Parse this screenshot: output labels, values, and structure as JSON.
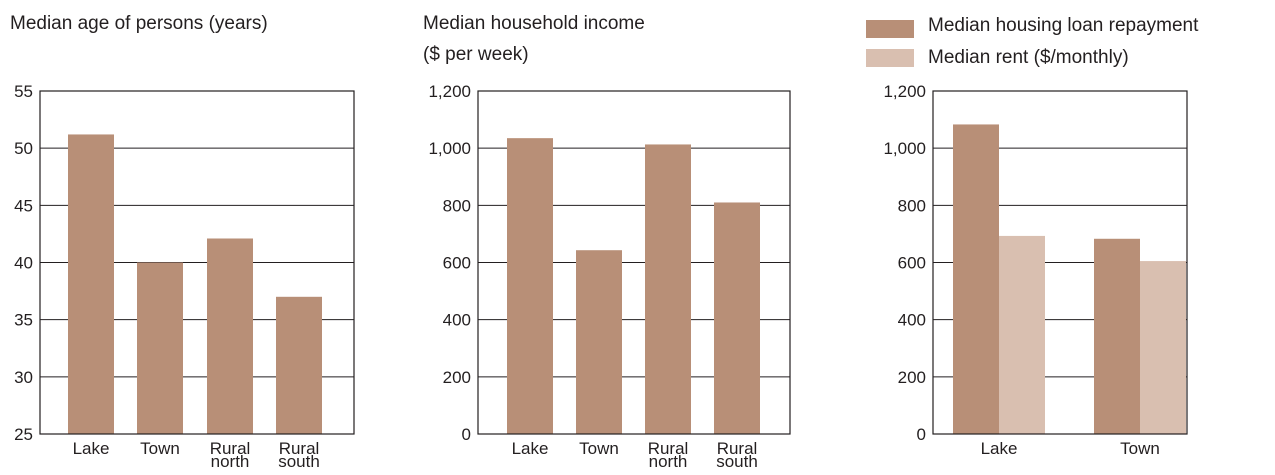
{
  "colors": {
    "primary": "#b88f77",
    "secondary": "#d9bfb0",
    "grid": "#231f20"
  },
  "chart_data": [
    {
      "type": "bar",
      "title": "Median age of persons (years)",
      "categories": [
        [
          "Lake"
        ],
        [
          "Town"
        ],
        [
          "Rural",
          "north"
        ],
        [
          "Rural",
          "south"
        ]
      ],
      "values": [
        51.2,
        40.0,
        42.1,
        37.0
      ],
      "ylim": [
        25,
        55
      ],
      "yticks": [
        25,
        30,
        35,
        40,
        45,
        50,
        55
      ],
      "ytick_labels": [
        "25",
        "30",
        "35",
        "40",
        "45",
        "50",
        "55"
      ],
      "grid": true
    },
    {
      "type": "bar",
      "title": "Median household income",
      "subtitle": "($ per week)",
      "categories": [
        [
          "Lake"
        ],
        [
          "Town"
        ],
        [
          "Rural",
          "north"
        ],
        [
          "Rural",
          "south"
        ]
      ],
      "values": [
        1035,
        643,
        1013,
        810
      ],
      "ylim": [
        0,
        1200
      ],
      "yticks": [
        0,
        200,
        400,
        600,
        800,
        1000,
        1200
      ],
      "ytick_labels": [
        "0",
        "200",
        "400",
        "600",
        "800",
        "1,000",
        "1,200"
      ],
      "grid": true
    },
    {
      "type": "bar",
      "categories": [
        [
          "Lake"
        ],
        [
          "Town"
        ]
      ],
      "series": [
        {
          "name": "Median housing loan repayment",
          "values": [
            1083,
            683
          ]
        },
        {
          "name": "Median rent ($/monthly)",
          "values": [
            693,
            605
          ]
        }
      ],
      "ylim": [
        0,
        1200
      ],
      "yticks": [
        0,
        200,
        400,
        600,
        800,
        1000,
        1200
      ],
      "ytick_labels": [
        "0",
        "200",
        "400",
        "600",
        "800",
        "1,000",
        "1,200"
      ],
      "legend": "top",
      "grid": true
    }
  ]
}
